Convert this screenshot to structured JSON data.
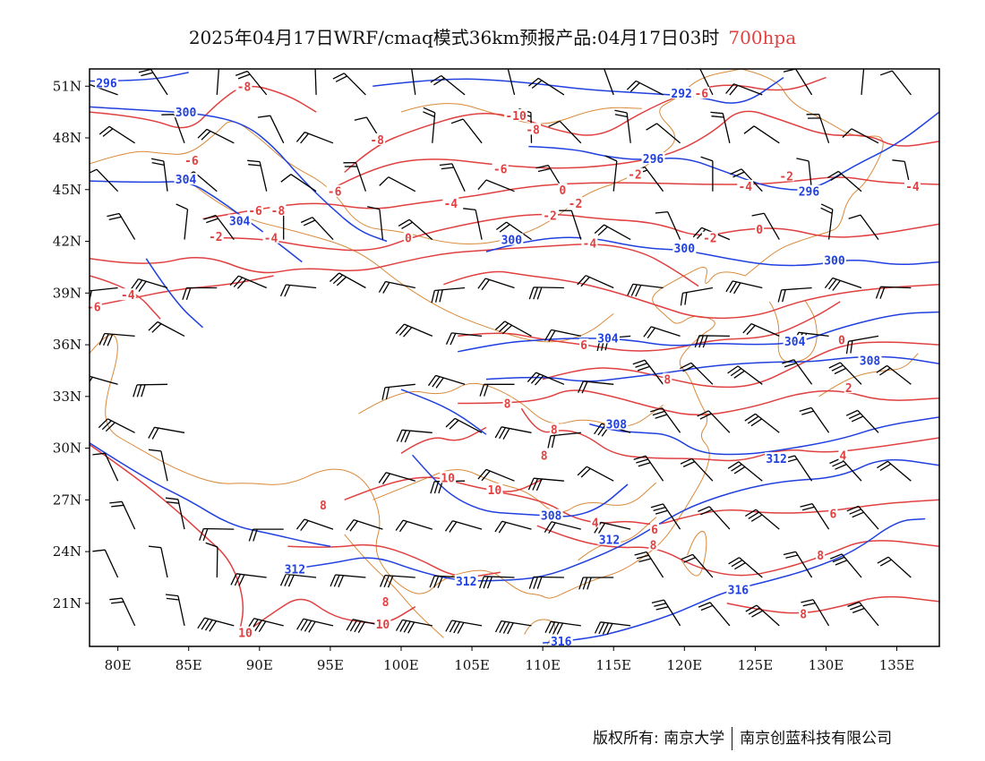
{
  "title": {
    "main": "2025年04月17日WRF/cmaq模式36km预报产品:04月17日03时",
    "level": "700hpa"
  },
  "colors": {
    "temperature_contours": "#e04040",
    "height_contours": "#2040e0",
    "coastline_borders": "#d98a3a",
    "wind_barbs": "#000000",
    "frame": "#000000"
  },
  "map": {
    "lon_ticks": [
      "80E",
      "85E",
      "90E",
      "95E",
      "100E",
      "105E",
      "110E",
      "115E",
      "120E",
      "125E",
      "130E",
      "135E"
    ],
    "lat_ticks": [
      "51N",
      "48N",
      "45N",
      "42N",
      "39N",
      "36N",
      "33N",
      "30N",
      "27N",
      "24N",
      "21N"
    ],
    "lon_range": [
      78,
      138
    ],
    "lat_range": [
      18.5,
      52
    ],
    "height_labels": [
      {
        "text": "296",
        "lon": 79.2,
        "lat": 51.2
      },
      {
        "text": "300",
        "lon": 84.8,
        "lat": 49.5
      },
      {
        "text": "304",
        "lon": 84.8,
        "lat": 45.6
      },
      {
        "text": "304",
        "lon": 88.6,
        "lat": 43.2
      },
      {
        "text": "300",
        "lon": 107.8,
        "lat": 42.1
      },
      {
        "text": "300",
        "lon": 120.0,
        "lat": 41.6
      },
      {
        "text": "300",
        "lon": 130.6,
        "lat": 40.9
      },
      {
        "text": "292",
        "lon": 119.8,
        "lat": 50.6
      },
      {
        "text": "296",
        "lon": 117.8,
        "lat": 46.8
      },
      {
        "text": "296",
        "lon": 128.8,
        "lat": 44.9
      },
      {
        "text": "304",
        "lon": 114.6,
        "lat": 36.4
      },
      {
        "text": "304",
        "lon": 127.8,
        "lat": 36.2
      },
      {
        "text": "308",
        "lon": 133.1,
        "lat": 35.1
      },
      {
        "text": "308",
        "lon": 115.2,
        "lat": 31.4
      },
      {
        "text": "312",
        "lon": 126.5,
        "lat": 29.4
      },
      {
        "text": "308",
        "lon": 110.6,
        "lat": 26.1
      },
      {
        "text": "312",
        "lon": 114.7,
        "lat": 24.7
      },
      {
        "text": "312",
        "lon": 92.5,
        "lat": 23.0
      },
      {
        "text": "312",
        "lon": 104.6,
        "lat": 22.3
      },
      {
        "text": "316",
        "lon": 123.8,
        "lat": 21.8
      },
      {
        "text": "316",
        "lon": 111.3,
        "lat": 18.8
      }
    ],
    "temp_labels": [
      {
        "text": "-8",
        "lon": 88.9,
        "lat": 51.0
      },
      {
        "text": "-10",
        "lon": 108.1,
        "lat": 49.3
      },
      {
        "text": "-8",
        "lon": 109.3,
        "lat": 48.5
      },
      {
        "text": "-6",
        "lon": 121.2,
        "lat": 50.6
      },
      {
        "text": "-8",
        "lon": 98.3,
        "lat": 47.9
      },
      {
        "text": "-6",
        "lon": 85.2,
        "lat": 46.7
      },
      {
        "text": "-6",
        "lon": 107.0,
        "lat": 46.2
      },
      {
        "text": "-6",
        "lon": 95.3,
        "lat": 44.9
      },
      {
        "text": "-2",
        "lon": 116.5,
        "lat": 45.9
      },
      {
        "text": "-4",
        "lon": 103.5,
        "lat": 44.2
      },
      {
        "text": "-2",
        "lon": 112.3,
        "lat": 44.2
      },
      {
        "text": "0",
        "lon": 111.4,
        "lat": 45.0
      },
      {
        "text": "-4",
        "lon": 124.3,
        "lat": 45.2
      },
      {
        "text": "-2",
        "lon": 127.2,
        "lat": 45.8
      },
      {
        "text": "-4",
        "lon": 136.1,
        "lat": 45.2
      },
      {
        "text": "-2",
        "lon": 110.5,
        "lat": 43.5
      },
      {
        "text": "-6",
        "lon": 89.7,
        "lat": 43.8
      },
      {
        "text": "-8",
        "lon": 91.3,
        "lat": 43.8
      },
      {
        "text": "-2",
        "lon": 86.9,
        "lat": 42.3
      },
      {
        "text": "-4",
        "lon": 90.8,
        "lat": 42.2
      },
      {
        "text": "0",
        "lon": 100.5,
        "lat": 42.2
      },
      {
        "text": "-4",
        "lon": 113.3,
        "lat": 41.9
      },
      {
        "text": "-2",
        "lon": 121.8,
        "lat": 42.2
      },
      {
        "text": "0",
        "lon": 125.3,
        "lat": 42.7
      },
      {
        "text": "-4",
        "lon": 80.7,
        "lat": 38.9
      },
      {
        "text": "-6",
        "lon": 78.3,
        "lat": 38.2
      },
      {
        "text": "6",
        "lon": 112.9,
        "lat": 36.0
      },
      {
        "text": "0",
        "lon": 131.1,
        "lat": 36.3
      },
      {
        "text": "8",
        "lon": 118.8,
        "lat": 34.0
      },
      {
        "text": "2",
        "lon": 131.6,
        "lat": 33.5
      },
      {
        "text": "8",
        "lon": 107.5,
        "lat": 32.6
      },
      {
        "text": "8",
        "lon": 110.8,
        "lat": 31.1
      },
      {
        "text": "8",
        "lon": 110.1,
        "lat": 29.6
      },
      {
        "text": "4",
        "lon": 131.2,
        "lat": 29.6
      },
      {
        "text": "10",
        "lon": 103.3,
        "lat": 28.3
      },
      {
        "text": "10",
        "lon": 106.6,
        "lat": 27.6
      },
      {
        "text": "8",
        "lon": 94.5,
        "lat": 26.7
      },
      {
        "text": "4",
        "lon": 113.7,
        "lat": 25.7
      },
      {
        "text": "6",
        "lon": 117.9,
        "lat": 25.3
      },
      {
        "text": "8",
        "lon": 117.8,
        "lat": 24.4
      },
      {
        "text": "6",
        "lon": 130.5,
        "lat": 26.2
      },
      {
        "text": "8",
        "lon": 129.6,
        "lat": 23.8
      },
      {
        "text": "8",
        "lon": 98.9,
        "lat": 21.1
      },
      {
        "text": "8",
        "lon": 128.4,
        "lat": 20.4
      },
      {
        "text": "10",
        "lon": 98.7,
        "lat": 19.8
      },
      {
        "text": "10",
        "lon": 89.0,
        "lat": 19.3
      }
    ]
  },
  "footer": {
    "copyright": "版权所有: 南京大学",
    "company": "南京创蓝科技有限公司"
  }
}
